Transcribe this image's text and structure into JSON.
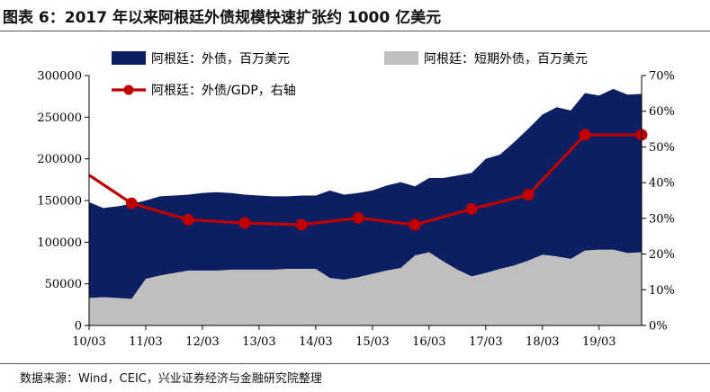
{
  "title": "图表 6：2017 年以来阿根廷外债规模快速扩张约 1000 亿美元",
  "source": "数据来源：Wind，CEIC，兴业证券经济与金融研究院整理",
  "colors": {
    "external_debt": "#0d1f63",
    "short_term_debt": "#bfbfbf",
    "debt_gdp": "#c00000"
  },
  "chart_data": {
    "type": "area",
    "x_start": "10/03",
    "x_end": "19/12",
    "categories": [
      "10/03",
      "10/06",
      "10/09",
      "10/12",
      "11/03",
      "11/06",
      "11/09",
      "11/12",
      "12/03",
      "12/06",
      "12/09",
      "12/12",
      "13/03",
      "13/06",
      "13/09",
      "13/12",
      "14/03",
      "14/06",
      "14/09",
      "14/12",
      "15/03",
      "15/06",
      "15/09",
      "15/12",
      "16/03",
      "16/06",
      "16/09",
      "16/12",
      "17/03",
      "17/06",
      "17/09",
      "17/12",
      "18/03",
      "18/06",
      "18/09",
      "18/12",
      "19/03",
      "19/06",
      "19/09",
      "19/12"
    ],
    "x_tick_labels": [
      "10/03",
      "11/03",
      "12/03",
      "13/03",
      "14/03",
      "15/03",
      "16/03",
      "17/03",
      "18/03",
      "19/03"
    ],
    "y_left": {
      "min": 0,
      "max": 300000,
      "ticks": [
        "0",
        "50000",
        "100000",
        "150000",
        "200000",
        "250000",
        "300000"
      ]
    },
    "y_right": {
      "min": 0,
      "max": 70,
      "ticks": [
        "0%",
        "10%",
        "20%",
        "30%",
        "40%",
        "50%",
        "60%",
        "70%"
      ]
    },
    "series": [
      {
        "name": "阿根廷：外债，百万美元",
        "kind": "area",
        "axis": "left",
        "values": [
          148000,
          141000,
          143000,
          146000,
          150000,
          155000,
          156000,
          157000,
          159000,
          160000,
          159000,
          157000,
          156000,
          155000,
          155000,
          156000,
          156000,
          162000,
          157000,
          159000,
          162000,
          168000,
          172000,
          167000,
          177000,
          177000,
          180000,
          183000,
          200000,
          205000,
          220000,
          236000,
          253000,
          262000,
          258000,
          279000,
          276000,
          284000,
          277000,
          278000
        ]
      },
      {
        "name": "阿根廷：短期外债，百万美元",
        "kind": "area",
        "axis": "left",
        "values": [
          33000,
          34000,
          33000,
          32000,
          56000,
          60000,
          63000,
          66000,
          66000,
          66000,
          67000,
          67000,
          67000,
          67000,
          68000,
          68000,
          68000,
          57000,
          55000,
          58000,
          62000,
          66000,
          69000,
          84000,
          88000,
          77000,
          67000,
          59000,
          63000,
          68000,
          72000,
          78000,
          85000,
          83000,
          80000,
          90000,
          91000,
          91000,
          87000,
          88000
        ]
      },
      {
        "name": "阿根廷：外债/GDP，右轴",
        "kind": "line",
        "axis": "right",
        "x": [
          "10/03",
          "10/12",
          "11/12",
          "12/12",
          "13/12",
          "14/12",
          "15/12",
          "16/12",
          "17/12",
          "18/12",
          "19/12"
        ],
        "values": [
          42.1,
          34.2,
          29.6,
          28.7,
          28.2,
          30.1,
          28.2,
          32.6,
          36.6,
          53.4,
          53.4
        ]
      }
    ],
    "legend_placement": "top"
  }
}
